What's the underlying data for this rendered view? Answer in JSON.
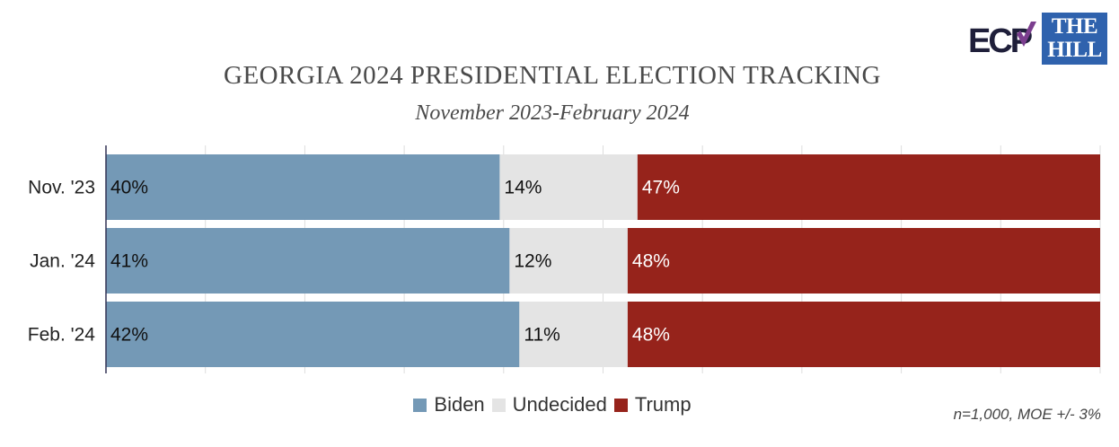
{
  "title": "GEORGIA 2024 PRESIDENTIAL ELECTION TRACKING",
  "subtitle": "November 2023-February 2024",
  "logos": {
    "ecp": "ECP",
    "hill_line1": "THE",
    "hill_line2": "HILL"
  },
  "note": "n=1,000, MOE +/- 3%",
  "chart_data": {
    "type": "bar",
    "orientation": "horizontal",
    "stacked": true,
    "categories": [
      "Nov. '23",
      "Jan. '24",
      "Feb. '24"
    ],
    "series": [
      {
        "name": "Biden",
        "values": [
          40,
          41,
          42
        ],
        "labels": [
          "40%",
          "41%",
          "42%"
        ],
        "color": "#7499b6"
      },
      {
        "name": "Undecided",
        "values": [
          14,
          12,
          11
        ],
        "labels": [
          "14%",
          "12%",
          "11%"
        ],
        "color": "#e4e4e4"
      },
      {
        "name": "Trump",
        "values": [
          47,
          48,
          48
        ],
        "labels": [
          "47%",
          "48%",
          "48%"
        ],
        "color": "#96231b"
      }
    ],
    "xlim": [
      0,
      100
    ],
    "legend": "bottom-center",
    "grid": true
  }
}
